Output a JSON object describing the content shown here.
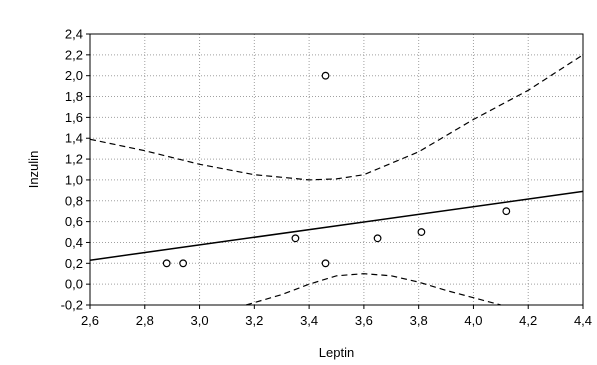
{
  "chart_data": {
    "type": "scatter",
    "xlabel": "Leptin",
    "ylabel": "Inzulin",
    "xlim": [
      2.6,
      4.4
    ],
    "ylim": [
      -0.2,
      2.4
    ],
    "x_ticks": [
      2.6,
      2.8,
      3.0,
      3.2,
      3.4,
      3.6,
      3.8,
      4.0,
      4.2,
      4.4
    ],
    "y_ticks": [
      -0.2,
      0.0,
      0.2,
      0.4,
      0.6,
      0.8,
      1.0,
      1.2,
      1.4,
      1.6,
      1.8,
      2.0,
      2.2,
      2.4
    ],
    "x_tick_labels": [
      "2,6",
      "2,8",
      "3,0",
      "3,2",
      "3,4",
      "3,6",
      "3,8",
      "4,0",
      "4,2",
      "4,4"
    ],
    "y_tick_labels": [
      "-0,2",
      "0,0",
      "0,2",
      "0,4",
      "0,6",
      "0,8",
      "1,0",
      "1,2",
      "1,4",
      "1,6",
      "1,8",
      "2,0",
      "2,2",
      "2,4"
    ],
    "grid": true,
    "points": [
      {
        "x": 2.88,
        "y": 0.2
      },
      {
        "x": 2.94,
        "y": 0.2
      },
      {
        "x": 3.35,
        "y": 0.44
      },
      {
        "x": 3.46,
        "y": 2.0
      },
      {
        "x": 3.46,
        "y": 0.2
      },
      {
        "x": 3.65,
        "y": 0.44
      },
      {
        "x": 3.81,
        "y": 0.5
      },
      {
        "x": 4.12,
        "y": 0.7
      }
    ],
    "regression_line": {
      "x": [
        2.6,
        4.4
      ],
      "y": [
        0.23,
        0.89
      ]
    },
    "confidence_band_upper": {
      "x": [
        2.6,
        2.8,
        3.0,
        3.2,
        3.4,
        3.5,
        3.6,
        3.8,
        4.0,
        4.2,
        4.4
      ],
      "y": [
        1.39,
        1.28,
        1.15,
        1.05,
        1.0,
        1.01,
        1.05,
        1.27,
        1.58,
        1.86,
        2.2
      ]
    },
    "confidence_band_lower": {
      "x": [
        3.17,
        3.3,
        3.4,
        3.5,
        3.6,
        3.7,
        3.8,
        3.9,
        4.0,
        4.1
      ],
      "y": [
        -0.2,
        -0.1,
        0.0,
        0.08,
        0.1,
        0.08,
        0.02,
        -0.06,
        -0.13,
        -0.2
      ]
    },
    "colors": {
      "line": "#000000",
      "grid": "#a0a0a0",
      "marker": "#000000",
      "background": "#ffffff"
    }
  }
}
